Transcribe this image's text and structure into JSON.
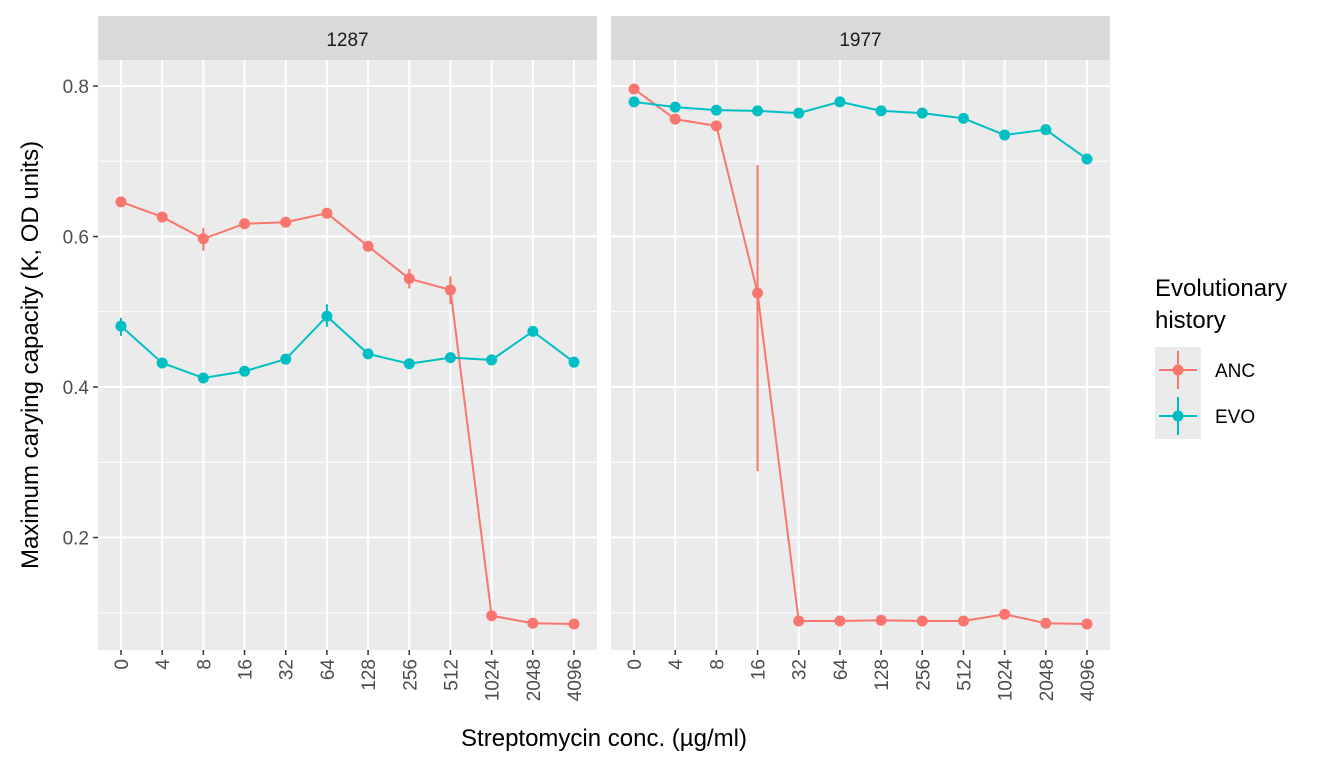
{
  "chart_data": {
    "type": "line",
    "xlabel": "Streptomycin conc. (µg/ml)",
    "ylabel": "Maximum carying capacity (K, OD units)",
    "categories": [
      "0",
      "4",
      "8",
      "16",
      "32",
      "64",
      "128",
      "256",
      "512",
      "1024",
      "2048",
      "4096"
    ],
    "ylim": [
      0.0505,
      0.8346
    ],
    "yticks": [
      0.2,
      0.4,
      0.6,
      0.8
    ],
    "ytick_labels": [
      "0.2",
      "0.4",
      "0.6",
      "0.8"
    ],
    "grid": true,
    "legend": {
      "title_lines": [
        "Evolutionary",
        "history"
      ],
      "placement": "right",
      "entries": [
        "ANC",
        "EVO"
      ]
    },
    "colors": {
      "ANC": "#F8766D",
      "EVO": "#00BFC4"
    },
    "panels": [
      {
        "title": "1287",
        "series": [
          {
            "name": "ANC",
            "values": [
              0.646,
              0.626,
              0.597,
              0.617,
              0.619,
              0.631,
              0.587,
              0.544,
              0.529,
              0.096,
              0.086,
              0.085
            ],
            "errors": [
              null,
              null,
              [
                0.581,
                0.611
              ],
              null,
              null,
              null,
              [
                0.58,
                0.594
              ],
              [
                0.531,
                0.557
              ],
              [
                0.51,
                0.547
              ],
              null,
              null,
              null
            ]
          },
          {
            "name": "EVO",
            "values": [
              0.481,
              0.432,
              0.412,
              0.421,
              0.437,
              0.494,
              0.444,
              0.431,
              0.439,
              0.436,
              0.474,
              0.433
            ],
            "errors": [
              [
                0.468,
                0.492
              ],
              null,
              null,
              null,
              null,
              [
                0.48,
                0.51
              ],
              null,
              null,
              null,
              null,
              null,
              null
            ]
          }
        ]
      },
      {
        "title": "1977",
        "series": [
          {
            "name": "ANC",
            "values": [
              0.796,
              0.756,
              0.747,
              0.525,
              0.089,
              0.089,
              0.09,
              0.089,
              0.089,
              0.098,
              0.086,
              0.085
            ],
            "errors": [
              null,
              null,
              null,
              [
                0.288,
                0.695
              ],
              null,
              null,
              null,
              null,
              null,
              null,
              null,
              null
            ]
          },
          {
            "name": "EVO",
            "values": [
              0.779,
              0.772,
              0.768,
              0.767,
              0.764,
              0.779,
              0.767,
              0.764,
              0.757,
              0.735,
              0.742,
              0.703
            ],
            "errors": [
              null,
              null,
              null,
              null,
              null,
              null,
              null,
              null,
              null,
              null,
              null,
              null
            ]
          }
        ]
      }
    ]
  }
}
